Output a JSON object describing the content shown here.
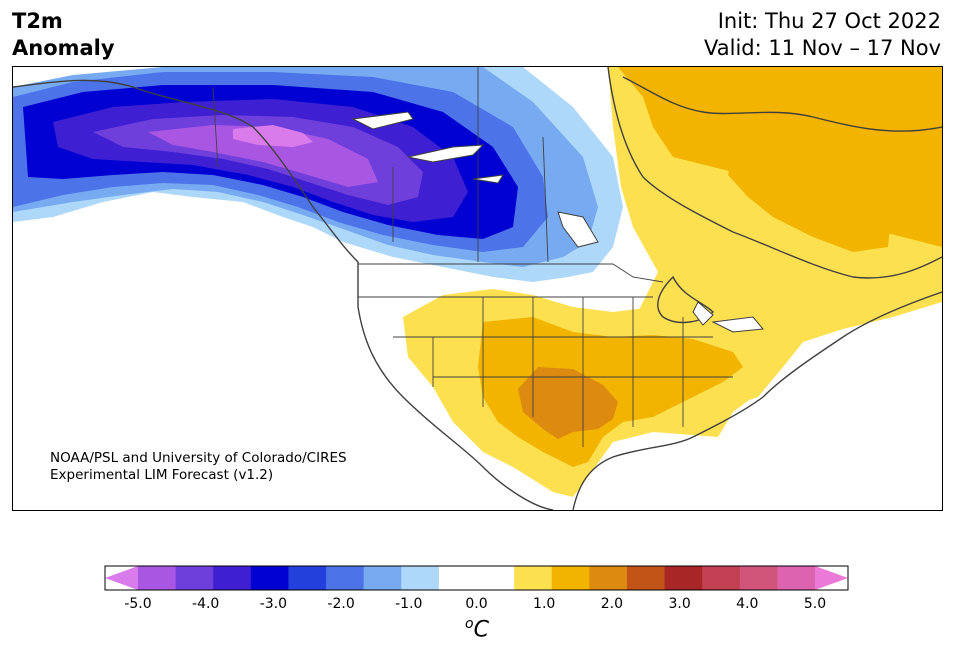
{
  "title": {
    "line1": "T2m",
    "line2": "Anomaly"
  },
  "info": {
    "init": "Init: Thu 27 Oct 2022",
    "valid": "Valid: 11 Nov – 17 Nov"
  },
  "credit": {
    "line1": "NOAA/PSL and University of Colorado/CIRES",
    "line2": "Experimental LIM Forecast (v1.2)"
  },
  "colorbar": {
    "ticks": [
      "-5.0",
      "-4.0",
      "-3.0",
      "-2.0",
      "-1.0",
      "0.0",
      "1.0",
      "2.0",
      "3.0",
      "4.0",
      "5.0"
    ],
    "unit_sup": "o",
    "unit": "C",
    "colors": [
      "#d97bea",
      "#a957e3",
      "#6f3fdb",
      "#3f1fd2",
      "#0000d2",
      "#2440dc",
      "#4d73e8",
      "#78aaf2",
      "#aed8fa",
      "#ffffff",
      "#ffffff",
      "#fde050",
      "#f3b400",
      "#dd8a10",
      "#c35418",
      "#a82626",
      "#c24052",
      "#d1557b",
      "#dd63ae",
      "#eb79d8"
    ]
  },
  "regions": {
    "cold_core": "-4.5 to -5.0",
    "cold_band": "-1.0 to -4.0",
    "warm_south": "1.0 to 2.0",
    "warm_northeast": "0.5 to 1.5"
  }
}
